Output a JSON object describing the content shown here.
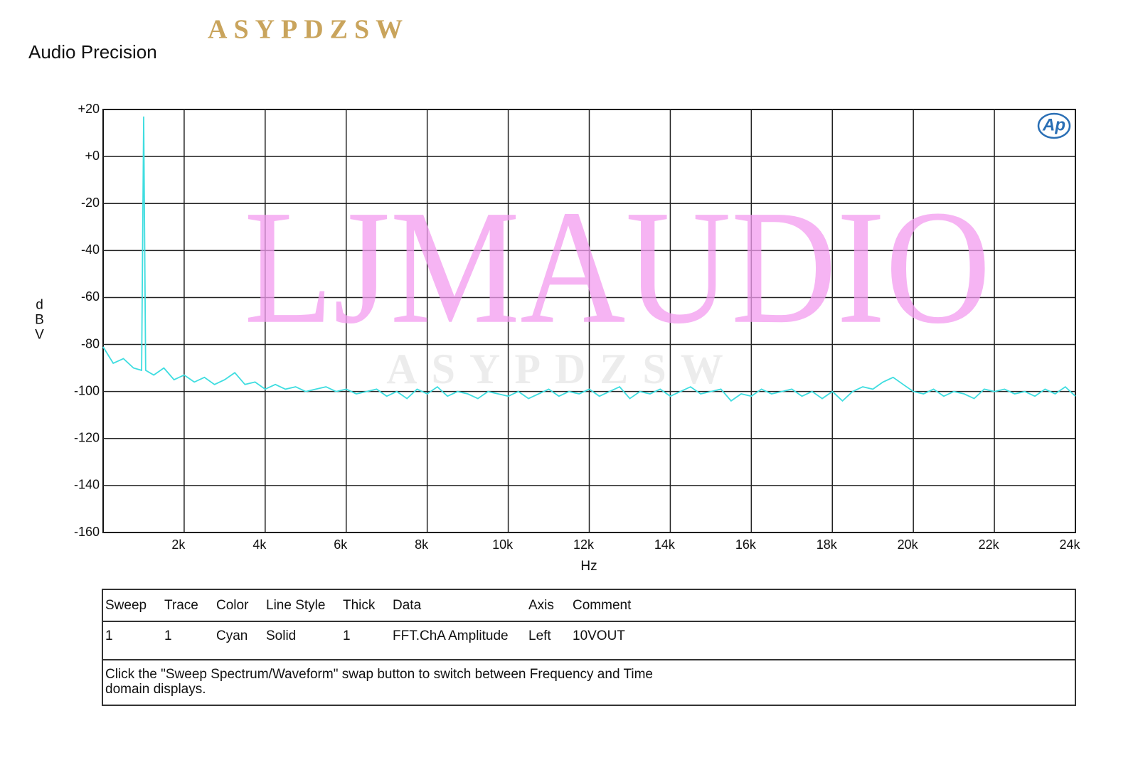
{
  "header": {
    "title": "Audio Precision",
    "brand": "ASYPDZSW"
  },
  "watermarks": {
    "main": "LJMAUDIO",
    "faint": "ASYPDZSW",
    "logo": "Ap"
  },
  "chart_data": {
    "type": "line",
    "xlabel": "Hz",
    "ylabel": "dBV",
    "color": "#3fdde0",
    "grid": true,
    "xlim": [
      0,
      24000
    ],
    "ylim": [
      -160,
      20
    ],
    "xticks": [
      {
        "value": 2000,
        "label": "2k"
      },
      {
        "value": 4000,
        "label": "4k"
      },
      {
        "value": 6000,
        "label": "6k"
      },
      {
        "value": 8000,
        "label": "8k"
      },
      {
        "value": 10000,
        "label": "10k"
      },
      {
        "value": 12000,
        "label": "12k"
      },
      {
        "value": 14000,
        "label": "14k"
      },
      {
        "value": 16000,
        "label": "16k"
      },
      {
        "value": 18000,
        "label": "18k"
      },
      {
        "value": 20000,
        "label": "20k"
      },
      {
        "value": 22000,
        "label": "22k"
      },
      {
        "value": 24000,
        "label": "24k"
      }
    ],
    "yticks": [
      {
        "value": 20,
        "label": "+20"
      },
      {
        "value": 0,
        "label": "+0"
      },
      -20,
      -40,
      -60,
      -80,
      -100,
      -120,
      -140,
      -160
    ],
    "x": [
      0,
      250,
      500,
      750,
      950,
      1000,
      1050,
      1250,
      1500,
      1750,
      2000,
      2250,
      2500,
      2750,
      3000,
      3250,
      3500,
      3750,
      4000,
      4250,
      4500,
      4750,
      5000,
      5250,
      5500,
      5750,
      6000,
      6250,
      6500,
      6750,
      7000,
      7250,
      7500,
      7750,
      8000,
      8250,
      8500,
      8750,
      9000,
      9250,
      9500,
      9750,
      10000,
      10250,
      10500,
      10750,
      11000,
      11250,
      11500,
      11750,
      12000,
      12250,
      12500,
      12750,
      13000,
      13250,
      13500,
      13750,
      14000,
      14250,
      14500,
      14750,
      15000,
      15250,
      15500,
      15750,
      16000,
      16250,
      16500,
      16750,
      17000,
      17250,
      17500,
      17750,
      18000,
      18250,
      18500,
      18750,
      19000,
      19250,
      19500,
      19750,
      20000,
      20250,
      20500,
      20750,
      21000,
      21250,
      21500,
      21750,
      22000,
      22250,
      22500,
      22750,
      23000,
      23250,
      23500,
      23750,
      24000
    ],
    "values": [
      -81,
      -88,
      -86,
      -90,
      -91,
      17,
      -91,
      -93,
      -90,
      -95,
      -93,
      -96,
      -94,
      -97,
      -95,
      -92,
      -97,
      -96,
      -99,
      -97,
      -99,
      -98,
      -100,
      -99,
      -98,
      -100,
      -99,
      -101,
      -100,
      -99,
      -102,
      -100,
      -103,
      -99,
      -101,
      -98,
      -102,
      -100,
      -101,
      -103,
      -100,
      -101,
      -102,
      -100,
      -103,
      -101,
      -99,
      -102,
      -100,
      -101,
      -99,
      -102,
      -100,
      -98,
      -103,
      -100,
      -101,
      -99,
      -102,
      -100,
      -98,
      -101,
      -100,
      -99,
      -104,
      -101,
      -102,
      -99,
      -101,
      -100,
      -99,
      -102,
      -100,
      -103,
      -100,
      -104,
      -100,
      -98,
      -99,
      -96,
      -94,
      -97,
      -100,
      -101,
      -99,
      -102,
      -100,
      -101,
      -103,
      -99,
      -100,
      -99,
      -101,
      -100,
      -102,
      -99,
      -101,
      -98,
      -102
    ]
  },
  "legend_table": {
    "columns": [
      "Sweep",
      "Trace",
      "Color",
      "Line Style",
      "Thick",
      "Data",
      "Axis",
      "Comment"
    ],
    "rows": [
      [
        "1",
        "1",
        "Cyan",
        "Solid",
        "1",
        "FFT.ChA Amplitude",
        "Left",
        "10VOUT"
      ]
    ],
    "note": [
      "Click the \"Sweep Spectrum/Waveform\" swap button to switch between Frequency and Time",
      "domain displays."
    ]
  }
}
